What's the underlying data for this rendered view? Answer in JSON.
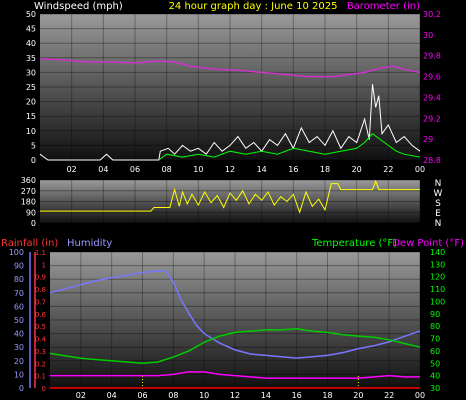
{
  "colors": {
    "background": "#000000",
    "wind": "#ffffff",
    "gust": "#00ff00",
    "barometer": "#cc33cc",
    "direction": "#ffff00",
    "rain": "#ff0000",
    "humidity": "#7777ff",
    "temperature": "#00cc00",
    "dewpoint": "#ff00ff",
    "axis_white": "#ffffff",
    "axis_magenta": "#ff00ff",
    "axis_red": "#ff3333",
    "axis_blue": "#9999ff",
    "axis_green": "#00ff00",
    "title_yellow": "#ffff00"
  },
  "chart_data": [
    {
      "type": "line",
      "title": "24 hour graph day : June 10 2025",
      "left_label": "Windspeed (mph)",
      "right_label": "Barometer (in)",
      "left_ticks": [
        "0",
        "5",
        "10",
        "15",
        "20",
        "25",
        "30",
        "35",
        "40",
        "45",
        "50"
      ],
      "right_ticks": [
        "28.8",
        "29",
        "29.2",
        "29.4",
        "29.6",
        "29.8",
        "30",
        "30.2"
      ],
      "x_ticks": [
        "02",
        "04",
        "06",
        "08",
        "10",
        "12",
        "14",
        "16",
        "18",
        "20",
        "22",
        "00"
      ],
      "ylim_left": [
        0,
        50
      ],
      "ylim_right": [
        28.8,
        30.2
      ],
      "xlim": [
        0,
        24
      ],
      "series": [
        {
          "axis": "right",
          "values": [
            [
              0,
              29.77
            ],
            [
              1.5,
              29.76
            ],
            [
              3,
              29.74
            ],
            [
              4.5,
              29.74
            ],
            [
              6,
              29.73
            ],
            [
              7.5,
              29.75
            ],
            [
              8.5,
              29.74
            ],
            [
              9.5,
              29.7
            ],
            [
              11,
              29.67
            ],
            [
              12.5,
              29.66
            ],
            [
              14,
              29.64
            ],
            [
              15.5,
              29.62
            ],
            [
              17,
              29.6
            ],
            [
              18.5,
              29.6
            ],
            [
              19.5,
              29.62
            ],
            [
              20.5,
              29.64
            ],
            [
              21.5,
              29.68
            ],
            [
              22.3,
              29.7
            ],
            [
              23,
              29.67
            ],
            [
              24,
              29.64
            ]
          ]
        },
        {
          "axis": "left",
          "values": [
            [
              0,
              2
            ],
            [
              0.25,
              1
            ],
            [
              0.5,
              0
            ],
            [
              3.8,
              0
            ],
            [
              4,
              1
            ],
            [
              4.2,
              2
            ],
            [
              4.4,
              1
            ],
            [
              4.6,
              0
            ],
            [
              7.5,
              0
            ],
            [
              7.6,
              3
            ],
            [
              8.1,
              4
            ],
            [
              8.5,
              2
            ],
            [
              9,
              5
            ],
            [
              9.5,
              3
            ],
            [
              10,
              4
            ],
            [
              10.5,
              2
            ],
            [
              11,
              6
            ],
            [
              11.5,
              3
            ],
            [
              12,
              5
            ],
            [
              12.5,
              8
            ],
            [
              13,
              4
            ],
            [
              13.5,
              6
            ],
            [
              14,
              3
            ],
            [
              14.5,
              7
            ],
            [
              15,
              5
            ],
            [
              15.5,
              9
            ],
            [
              16,
              4
            ],
            [
              16.5,
              11
            ],
            [
              17,
              6
            ],
            [
              17.5,
              8
            ],
            [
              18,
              5
            ],
            [
              18.5,
              10
            ],
            [
              19,
              4
            ],
            [
              19.5,
              8
            ],
            [
              20,
              6
            ],
            [
              20.5,
              14
            ],
            [
              20.8,
              7
            ],
            [
              21,
              26
            ],
            [
              21.2,
              18
            ],
            [
              21.4,
              22
            ],
            [
              21.6,
              9
            ],
            [
              22,
              12
            ],
            [
              22.5,
              6
            ],
            [
              23,
              8
            ],
            [
              23.5,
              5
            ],
            [
              24,
              3
            ]
          ]
        },
        {
          "axis": "left",
          "values": [
            [
              7.5,
              0
            ],
            [
              8,
              2
            ],
            [
              9,
              1
            ],
            [
              10,
              2
            ],
            [
              11,
              1
            ],
            [
              12,
              3
            ],
            [
              13,
              2
            ],
            [
              14,
              3
            ],
            [
              15,
              2
            ],
            [
              16,
              4
            ],
            [
              17,
              3
            ],
            [
              18,
              2
            ],
            [
              19,
              3
            ],
            [
              20,
              4
            ],
            [
              20.5,
              6
            ],
            [
              21,
              9
            ],
            [
              21.5,
              7
            ],
            [
              22,
              5
            ],
            [
              22.5,
              3
            ],
            [
              23,
              2
            ],
            [
              24,
              1
            ]
          ]
        }
      ]
    },
    {
      "type": "line",
      "right_label": "N W S E N",
      "left_ticks": [
        "0",
        "90",
        "180",
        "270",
        "360"
      ],
      "ylim": [
        0,
        360
      ],
      "xlim": [
        0,
        24
      ],
      "series": [
        {
          "values": [
            [
              0,
              100
            ],
            [
              7,
              100
            ],
            [
              7.2,
              130
            ],
            [
              8.2,
              130
            ],
            [
              8.3,
              180
            ],
            [
              8.5,
              280
            ],
            [
              8.8,
              140
            ],
            [
              9,
              260
            ],
            [
              9.3,
              160
            ],
            [
              9.6,
              240
            ],
            [
              10,
              150
            ],
            [
              10.4,
              260
            ],
            [
              10.8,
              170
            ],
            [
              11.2,
              230
            ],
            [
              11.6,
              130
            ],
            [
              12,
              250
            ],
            [
              12.4,
              190
            ],
            [
              12.8,
              270
            ],
            [
              13.2,
              160
            ],
            [
              13.6,
              240
            ],
            [
              14,
              190
            ],
            [
              14.4,
              260
            ],
            [
              14.8,
              150
            ],
            [
              15.2,
              220
            ],
            [
              15.6,
              180
            ],
            [
              16,
              240
            ],
            [
              16.4,
              90
            ],
            [
              16.8,
              260
            ],
            [
              17.2,
              140
            ],
            [
              17.6,
              200
            ],
            [
              18,
              110
            ],
            [
              18.4,
              330
            ],
            [
              18.8,
              330
            ],
            [
              19,
              280
            ],
            [
              20,
              280
            ],
            [
              21,
              280
            ],
            [
              21.2,
              350
            ],
            [
              21.4,
              280
            ],
            [
              22,
              280
            ],
            [
              23,
              280
            ],
            [
              24,
              280
            ]
          ]
        }
      ]
    },
    {
      "type": "line",
      "labels": {
        "rain": "Rainfall (in)",
        "humidity": "Humidity",
        "temperature": "Temperature (°F)",
        "dewpoint": "Dew Point (°F)"
      },
      "humidity_ticks": [
        "0",
        "10",
        "20",
        "30",
        "40",
        "50",
        "60",
        "70",
        "80",
        "90",
        "100"
      ],
      "rain_ticks": [
        "0",
        "0.1",
        "0.2",
        "0.3",
        "0.4",
        "0.5",
        "0.6",
        "0.7",
        "0.8",
        "0.9",
        "1",
        "1.1"
      ],
      "temp_ticks": [
        "30",
        "40",
        "50",
        "60",
        "70",
        "80",
        "90",
        "100",
        "110",
        "120",
        "130",
        "140"
      ],
      "x_ticks": [
        "02",
        "04",
        "06",
        "08",
        "10",
        "12",
        "14",
        "16",
        "18",
        "20",
        "22",
        "00"
      ],
      "xlim": [
        0,
        24
      ],
      "ylim_humidity": [
        0,
        100
      ],
      "ylim_temp": [
        30,
        140
      ],
      "series": [
        {
          "key": "humidity",
          "values": [
            [
              0,
              70
            ],
            [
              1,
              73
            ],
            [
              2,
              76
            ],
            [
              3,
              79
            ],
            [
              4,
              81
            ],
            [
              5,
              83
            ],
            [
              6,
              85
            ],
            [
              7,
              86
            ],
            [
              7.5,
              86
            ],
            [
              8,
              78
            ],
            [
              8.5,
              65
            ],
            [
              9,
              55
            ],
            [
              9.5,
              46
            ],
            [
              10,
              40
            ],
            [
              11,
              33
            ],
            [
              12,
              28
            ],
            [
              13,
              25
            ],
            [
              14,
              24
            ],
            [
              15,
              23
            ],
            [
              16,
              22
            ],
            [
              17,
              23
            ],
            [
              18,
              24
            ],
            [
              19,
              26
            ],
            [
              20,
              29
            ],
            [
              21,
              31
            ],
            [
              22,
              34
            ],
            [
              23,
              38
            ],
            [
              24,
              42
            ]
          ]
        },
        {
          "key": "temperature",
          "values": [
            [
              0,
              58
            ],
            [
              1,
              56
            ],
            [
              2,
              54
            ],
            [
              3,
              53
            ],
            [
              4,
              52
            ],
            [
              5,
              51
            ],
            [
              6,
              50
            ],
            [
              7,
              51
            ],
            [
              8,
              55
            ],
            [
              9,
              60
            ],
            [
              10,
              67
            ],
            [
              11,
              72
            ],
            [
              12,
              75
            ],
            [
              13,
              76
            ],
            [
              14,
              77
            ],
            [
              15,
              77
            ],
            [
              16,
              78
            ],
            [
              17,
              76
            ],
            [
              18,
              75
            ],
            [
              19,
              73
            ],
            [
              20,
              72
            ],
            [
              21,
              71
            ],
            [
              22,
              69
            ],
            [
              23,
              66
            ],
            [
              24,
              63
            ]
          ]
        },
        {
          "key": "dewpoint",
          "values": [
            [
              0,
              40
            ],
            [
              2,
              40
            ],
            [
              4,
              40
            ],
            [
              6,
              40
            ],
            [
              7,
              40
            ],
            [
              8,
              41
            ],
            [
              9,
              43
            ],
            [
              10,
              43
            ],
            [
              11,
              41
            ],
            [
              12,
              40
            ],
            [
              13,
              39
            ],
            [
              14,
              38
            ],
            [
              15,
              38
            ],
            [
              16,
              38
            ],
            [
              17,
              38
            ],
            [
              18,
              38
            ],
            [
              19,
              38
            ],
            [
              20,
              38
            ],
            [
              21,
              39
            ],
            [
              22,
              40
            ],
            [
              23,
              39
            ],
            [
              24,
              39
            ]
          ]
        },
        {
          "key": "rain",
          "values": [
            [
              0,
              0
            ],
            [
              24,
              0
            ]
          ]
        }
      ]
    }
  ]
}
